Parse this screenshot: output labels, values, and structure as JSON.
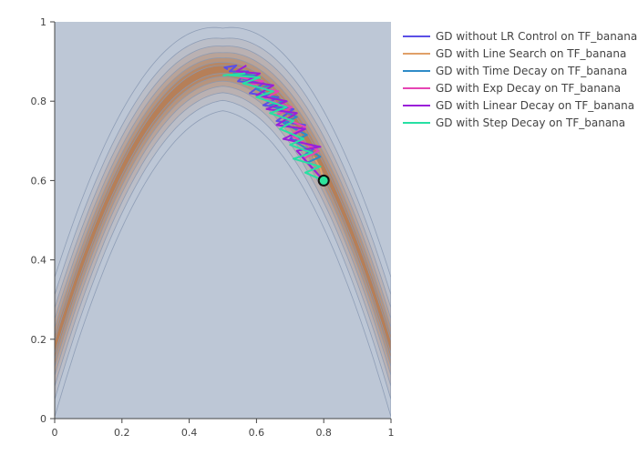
{
  "chart_data": {
    "type": "line",
    "title": "",
    "xlabel": "",
    "ylabel": "",
    "xlim": [
      0,
      1
    ],
    "ylim": [
      0,
      1
    ],
    "x_ticks": [
      "0",
      "0.2",
      "0.4",
      "0.6",
      "0.8",
      "1"
    ],
    "y_ticks": [
      "0",
      "0.2",
      "0.4",
      "0.6",
      "0.8",
      "1"
    ],
    "legend_position": "top-right",
    "background_contour": {
      "function": "TF_banana",
      "ridge": "y = -2.8*(x-0.5)^2 + 0.88",
      "background_color": "#bdc7d6",
      "ridge_color": "#b57a4e",
      "contour_line_color": "#8a99b3"
    },
    "start_point": {
      "x": 0.8,
      "y": 0.6,
      "fill": "#2ee39c",
      "stroke": "#111111"
    },
    "series": [
      {
        "name": "GD without LR Control on TF_banana",
        "color": "#5b4fe6",
        "points": [
          [
            0.8,
            0.6
          ],
          [
            0.735,
            0.66
          ],
          [
            0.78,
            0.685
          ],
          [
            0.7,
            0.705
          ],
          [
            0.745,
            0.74
          ],
          [
            0.66,
            0.75
          ],
          [
            0.71,
            0.78
          ],
          [
            0.62,
            0.79
          ],
          [
            0.665,
            0.81
          ],
          [
            0.58,
            0.82
          ],
          [
            0.62,
            0.845
          ],
          [
            0.545,
            0.85
          ],
          [
            0.575,
            0.875
          ],
          [
            0.52,
            0.875
          ],
          [
            0.54,
            0.89
          ],
          [
            0.505,
            0.885
          ],
          [
            0.515,
            0.88
          ]
        ]
      },
      {
        "name": "GD with Line Search on TF_banana",
        "color": "#e0a068",
        "points": [
          [
            0.8,
            0.6
          ],
          [
            0.79,
            0.63
          ],
          [
            0.77,
            0.66
          ]
        ]
      },
      {
        "name": "GD with Time Decay on TF_banana",
        "color": "#2f8bc7",
        "points": [
          [
            0.8,
            0.6
          ],
          [
            0.75,
            0.645
          ],
          [
            0.79,
            0.66
          ],
          [
            0.71,
            0.7
          ],
          [
            0.75,
            0.715
          ],
          [
            0.68,
            0.745
          ],
          [
            0.72,
            0.76
          ],
          [
            0.64,
            0.79
          ],
          [
            0.68,
            0.8
          ],
          [
            0.6,
            0.83
          ],
          [
            0.64,
            0.84
          ],
          [
            0.56,
            0.855
          ],
          [
            0.6,
            0.865
          ],
          [
            0.53,
            0.87
          ]
        ]
      },
      {
        "name": "GD with Exp Decay on TF_banana",
        "color": "#e645b4",
        "points": [
          [
            0.8,
            0.6
          ],
          [
            0.74,
            0.655
          ],
          [
            0.785,
            0.675
          ],
          [
            0.7,
            0.715
          ],
          [
            0.745,
            0.735
          ],
          [
            0.66,
            0.765
          ],
          [
            0.705,
            0.785
          ],
          [
            0.62,
            0.805
          ],
          [
            0.665,
            0.825
          ],
          [
            0.58,
            0.84
          ],
          [
            0.62,
            0.85
          ],
          [
            0.55,
            0.86
          ]
        ]
      },
      {
        "name": "GD with Linear Decay on TF_banana",
        "color": "#9a1fd9",
        "points": [
          [
            0.8,
            0.6
          ],
          [
            0.72,
            0.675
          ],
          [
            0.79,
            0.685
          ],
          [
            0.68,
            0.705
          ],
          [
            0.745,
            0.73
          ],
          [
            0.66,
            0.74
          ],
          [
            0.72,
            0.77
          ],
          [
            0.63,
            0.78
          ],
          [
            0.69,
            0.8
          ],
          [
            0.6,
            0.815
          ],
          [
            0.65,
            0.84
          ],
          [
            0.57,
            0.85
          ],
          [
            0.61,
            0.87
          ],
          [
            0.54,
            0.875
          ],
          [
            0.57,
            0.89
          ]
        ]
      },
      {
        "name": "GD with Step Decay on TF_banana",
        "color": "#27e0a3",
        "points": [
          [
            0.8,
            0.6
          ],
          [
            0.745,
            0.62
          ],
          [
            0.79,
            0.635
          ],
          [
            0.71,
            0.655
          ],
          [
            0.765,
            0.67
          ],
          [
            0.7,
            0.69
          ],
          [
            0.74,
            0.705
          ],
          [
            0.67,
            0.73
          ],
          [
            0.71,
            0.75
          ],
          [
            0.64,
            0.77
          ],
          [
            0.69,
            0.785
          ],
          [
            0.6,
            0.81
          ],
          [
            0.65,
            0.825
          ],
          [
            0.56,
            0.845
          ],
          [
            0.61,
            0.86
          ],
          [
            0.52,
            0.865
          ],
          [
            0.565,
            0.87
          ],
          [
            0.5,
            0.865
          ]
        ]
      }
    ]
  }
}
